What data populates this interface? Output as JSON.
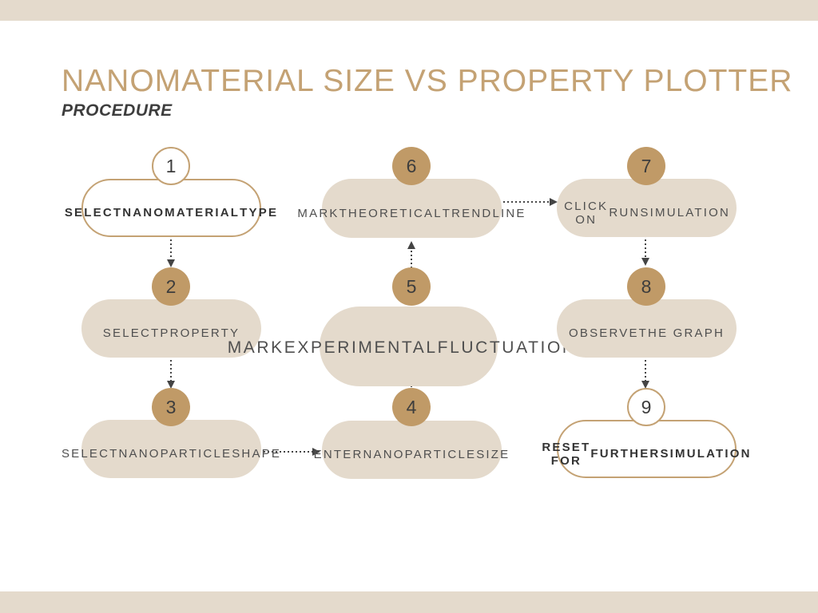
{
  "title": "NANOMATERIAL SIZE VS PROPERTY PLOTTER",
  "subtitle": "PROCEDURE",
  "steps": [
    {
      "number": "1",
      "lines": [
        "SELECT",
        "NANOMATERIAL",
        "TYPE"
      ]
    },
    {
      "number": "2",
      "lines": [
        "SELECT",
        "PROPERTY"
      ]
    },
    {
      "number": "3",
      "lines": [
        "SELECT",
        "NANOPARTICLE",
        "SHAPE"
      ]
    },
    {
      "number": "4",
      "lines": [
        "ENTER",
        "NANOPARTICLE",
        "SIZE"
      ]
    },
    {
      "number": "5",
      "lines": [
        "MARK",
        "EXPERIMENTAL",
        "FLUCTUATIONS"
      ]
    },
    {
      "number": "6",
      "lines": [
        "MARK",
        "THEORETICAL",
        "TRENDLINE"
      ]
    },
    {
      "number": "7",
      "lines": [
        "CLICK ON",
        "RUN",
        "SIMULATION"
      ]
    },
    {
      "number": "8",
      "lines": [
        "OBSERVE",
        "THE GRAPH"
      ]
    },
    {
      "number": "9",
      "lines": [
        "RESET FOR",
        "FURTHER",
        "SIMULATION"
      ]
    }
  ],
  "colors": {
    "accent": "#c4a274",
    "badge_fill": "#c09a67",
    "pill_fill": "#e4dacc",
    "text": "#4f4f4f"
  }
}
